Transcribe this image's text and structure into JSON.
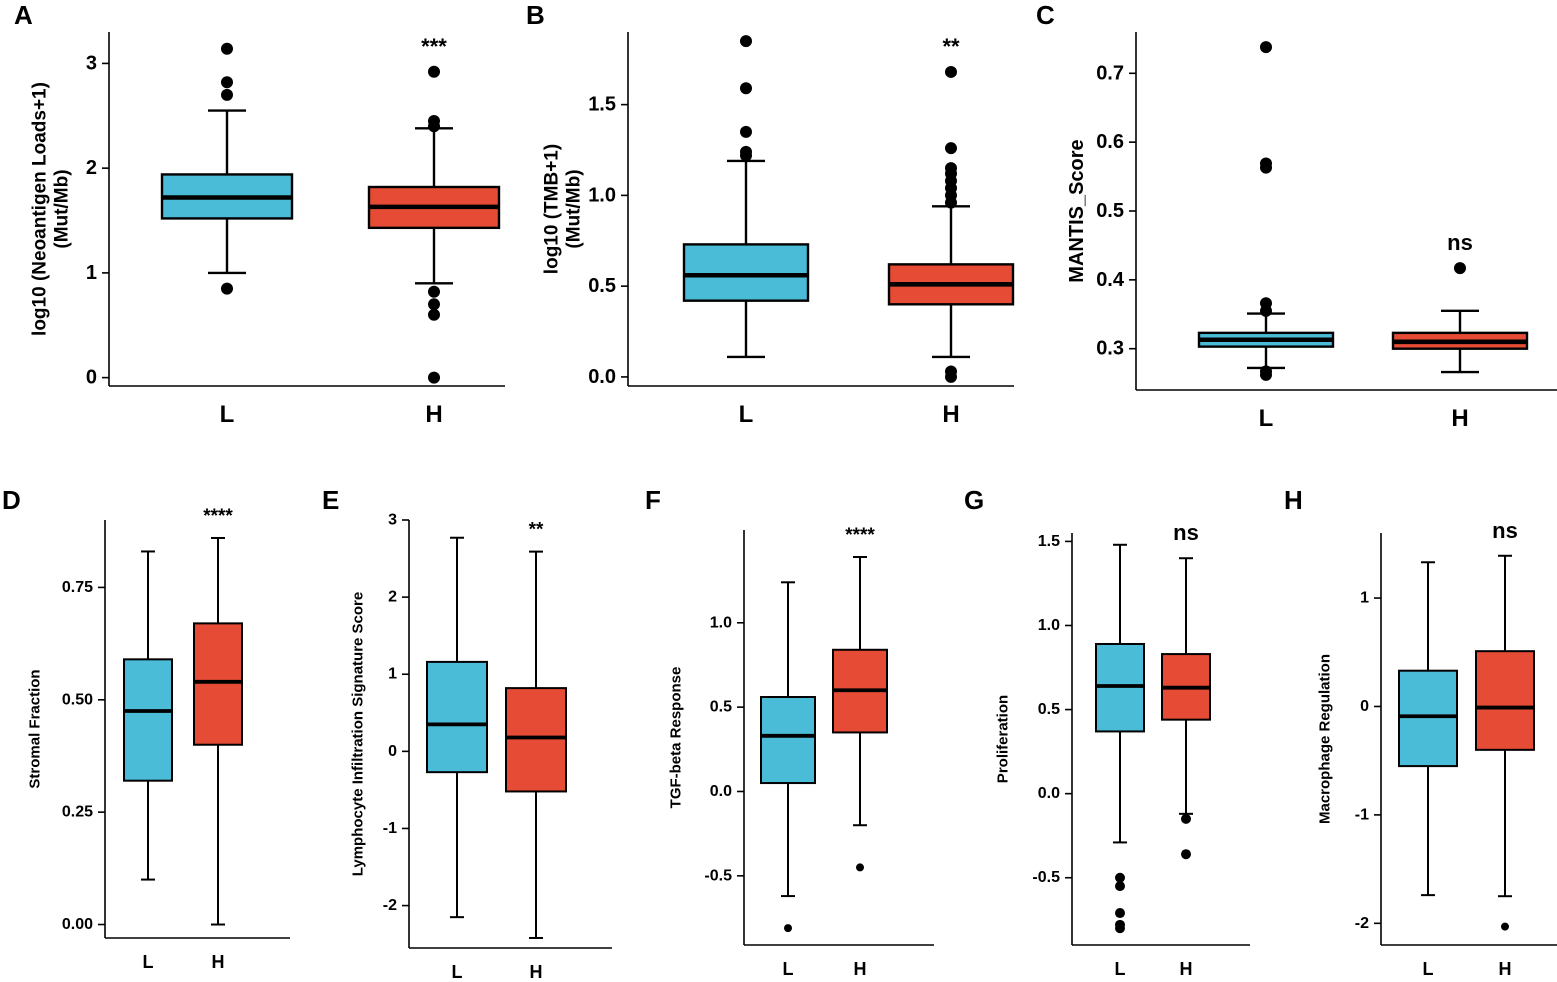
{
  "colors": {
    "low": "#4bbcd8",
    "high": "#e64b35",
    "ink": "#000000"
  },
  "chart_data": [
    {
      "panel": "A",
      "type": "boxplot",
      "ylabel": [
        "log10 (Neoantigen Loads+1)",
        "(Mut/Mb)"
      ],
      "categories": [
        "L",
        "H"
      ],
      "ylim": [
        -0.08,
        3.3
      ],
      "yticks": [
        0,
        1,
        2,
        3
      ],
      "ytick_labels": [
        "0",
        "1",
        "2",
        "3"
      ],
      "boxes": [
        {
          "name": "L",
          "min": 1.0,
          "q1": 1.52,
          "median": 1.72,
          "q3": 1.94,
          "max": 2.55,
          "outliers": [
            0.85,
            2.7,
            2.82,
            3.14
          ]
        },
        {
          "name": "H",
          "min": 0.9,
          "q1": 1.43,
          "median": 1.63,
          "q3": 1.82,
          "max": 2.38,
          "outliers": [
            0.0,
            0.6,
            0.7,
            0.82,
            2.4,
            2.45,
            2.92
          ]
        }
      ],
      "significance": "***"
    },
    {
      "panel": "B",
      "type": "boxplot",
      "ylabel": [
        "log10 (TMB+1)",
        "(Mut/Mb)"
      ],
      "categories": [
        "L",
        "H"
      ],
      "ylim": [
        -0.05,
        1.9
      ],
      "yticks": [
        0,
        0.5,
        1.0,
        1.5
      ],
      "ytick_labels": [
        "0.0",
        "0.5",
        "1.0",
        "1.5"
      ],
      "boxes": [
        {
          "name": "L",
          "min": 0.11,
          "q1": 0.42,
          "median": 0.56,
          "q3": 0.73,
          "max": 1.19,
          "outliers": [
            1.22,
            1.24,
            1.35,
            1.59,
            1.85
          ]
        },
        {
          "name": "H",
          "min": 0.11,
          "q1": 0.4,
          "median": 0.51,
          "q3": 0.62,
          "max": 0.94,
          "outliers": [
            0.0,
            0.03,
            0.96,
            1.0,
            1.04,
            1.08,
            1.12,
            1.15,
            1.26,
            1.68
          ]
        }
      ],
      "significance": "**"
    },
    {
      "panel": "C",
      "type": "boxplot",
      "ylabel": [
        "MANTIS_Score"
      ],
      "categories": [
        "L",
        "H"
      ],
      "ylim": [
        0.24,
        0.76
      ],
      "yticks": [
        0.3,
        0.4,
        0.5,
        0.6,
        0.7
      ],
      "ytick_labels": [
        "0.3",
        "0.4",
        "0.5",
        "0.6",
        "0.7"
      ],
      "boxes": [
        {
          "name": "L",
          "min": 0.272,
          "q1": 0.303,
          "median": 0.313,
          "q3": 0.323,
          "max": 0.351,
          "outliers": [
            0.262,
            0.267,
            0.355,
            0.366,
            0.563,
            0.569,
            0.738
          ]
        },
        {
          "name": "H",
          "min": 0.266,
          "q1": 0.3,
          "median": 0.31,
          "q3": 0.323,
          "max": 0.355,
          "outliers": [
            0.417
          ]
        }
      ],
      "significance": "ns"
    },
    {
      "panel": "D",
      "type": "boxplot",
      "ylabel": [
        "Stromal Fraction"
      ],
      "categories": [
        "L",
        "H"
      ],
      "ylim": [
        -0.03,
        0.9
      ],
      "yticks": [
        0,
        0.25,
        0.5,
        0.75
      ],
      "ytick_labels": [
        "0.00",
        "0.25",
        "0.50",
        "0.75"
      ],
      "boxes": [
        {
          "name": "L",
          "min": 0.1,
          "q1": 0.32,
          "median": 0.475,
          "q3": 0.59,
          "max": 0.83,
          "outliers": []
        },
        {
          "name": "H",
          "min": 0.0,
          "q1": 0.4,
          "median": 0.54,
          "q3": 0.67,
          "max": 0.86,
          "outliers": []
        }
      ],
      "significance": "****"
    },
    {
      "panel": "E",
      "type": "boxplot",
      "ylabel": [
        "Lymphocyte Infiltration Signature Score"
      ],
      "categories": [
        "L",
        "H"
      ],
      "ylim": [
        -2.55,
        3.0
      ],
      "yticks": [
        -2,
        -1,
        0,
        1,
        2,
        3
      ],
      "ytick_labels": [
        "-2",
        "-1",
        "0",
        "1",
        "2",
        "3"
      ],
      "boxes": [
        {
          "name": "L",
          "min": -2.15,
          "q1": -0.27,
          "median": 0.35,
          "q3": 1.16,
          "max": 2.77,
          "outliers": []
        },
        {
          "name": "H",
          "min": -2.42,
          "q1": -0.52,
          "median": 0.18,
          "q3": 0.82,
          "max": 2.59,
          "outliers": []
        }
      ],
      "significance": "**"
    },
    {
      "panel": "F",
      "type": "boxplot",
      "ylabel": [
        "TGF-beta Response"
      ],
      "categories": [
        "L",
        "H"
      ],
      "ylim": [
        -0.91,
        1.55
      ],
      "yticks": [
        -0.5,
        0,
        0.5,
        1.0
      ],
      "ytick_labels": [
        "-0.5",
        "0.0",
        "0.5",
        "1.0"
      ],
      "boxes": [
        {
          "name": "L",
          "min": -0.62,
          "q1": 0.05,
          "median": 0.33,
          "q3": 0.56,
          "max": 1.24,
          "outliers": [
            -0.81
          ]
        },
        {
          "name": "H",
          "min": -0.2,
          "q1": 0.35,
          "median": 0.6,
          "q3": 0.84,
          "max": 1.39,
          "outliers": [
            -0.45
          ]
        }
      ],
      "significance": "****"
    },
    {
      "panel": "G",
      "type": "boxplot",
      "ylabel": [
        "Proliferation"
      ],
      "categories": [
        "L",
        "H"
      ],
      "ylim": [
        -0.9,
        1.55
      ],
      "yticks": [
        -0.5,
        0,
        0.5,
        1.0,
        1.5
      ],
      "ytick_labels": [
        "-0.5",
        "0.0",
        "0.5",
        "1.0",
        "1.5"
      ],
      "boxes": [
        {
          "name": "L",
          "min": -0.29,
          "q1": 0.37,
          "median": 0.64,
          "q3": 0.89,
          "max": 1.48,
          "outliers": [
            -0.5,
            -0.55,
            -0.71,
            -0.78,
            -0.8
          ]
        },
        {
          "name": "H",
          "min": -0.12,
          "q1": 0.44,
          "median": 0.63,
          "q3": 0.83,
          "max": 1.4,
          "outliers": [
            -0.15,
            -0.36
          ]
        }
      ],
      "significance": "ns"
    },
    {
      "panel": "H",
      "type": "boxplot",
      "ylabel": [
        "Macrophage Regulation"
      ],
      "categories": [
        "L",
        "H"
      ],
      "ylim": [
        -2.2,
        1.6
      ],
      "yticks": [
        -2,
        -1,
        0,
        1
      ],
      "ytick_labels": [
        "-2",
        "-1",
        "0",
        "1"
      ],
      "boxes": [
        {
          "name": "L",
          "min": -1.74,
          "q1": -0.55,
          "median": -0.09,
          "q3": 0.33,
          "max": 1.33,
          "outliers": []
        },
        {
          "name": "H",
          "min": -1.75,
          "q1": -0.4,
          "median": -0.01,
          "q3": 0.51,
          "max": 1.39,
          "outliers": [
            -2.03
          ]
        }
      ],
      "significance": "ns"
    }
  ]
}
